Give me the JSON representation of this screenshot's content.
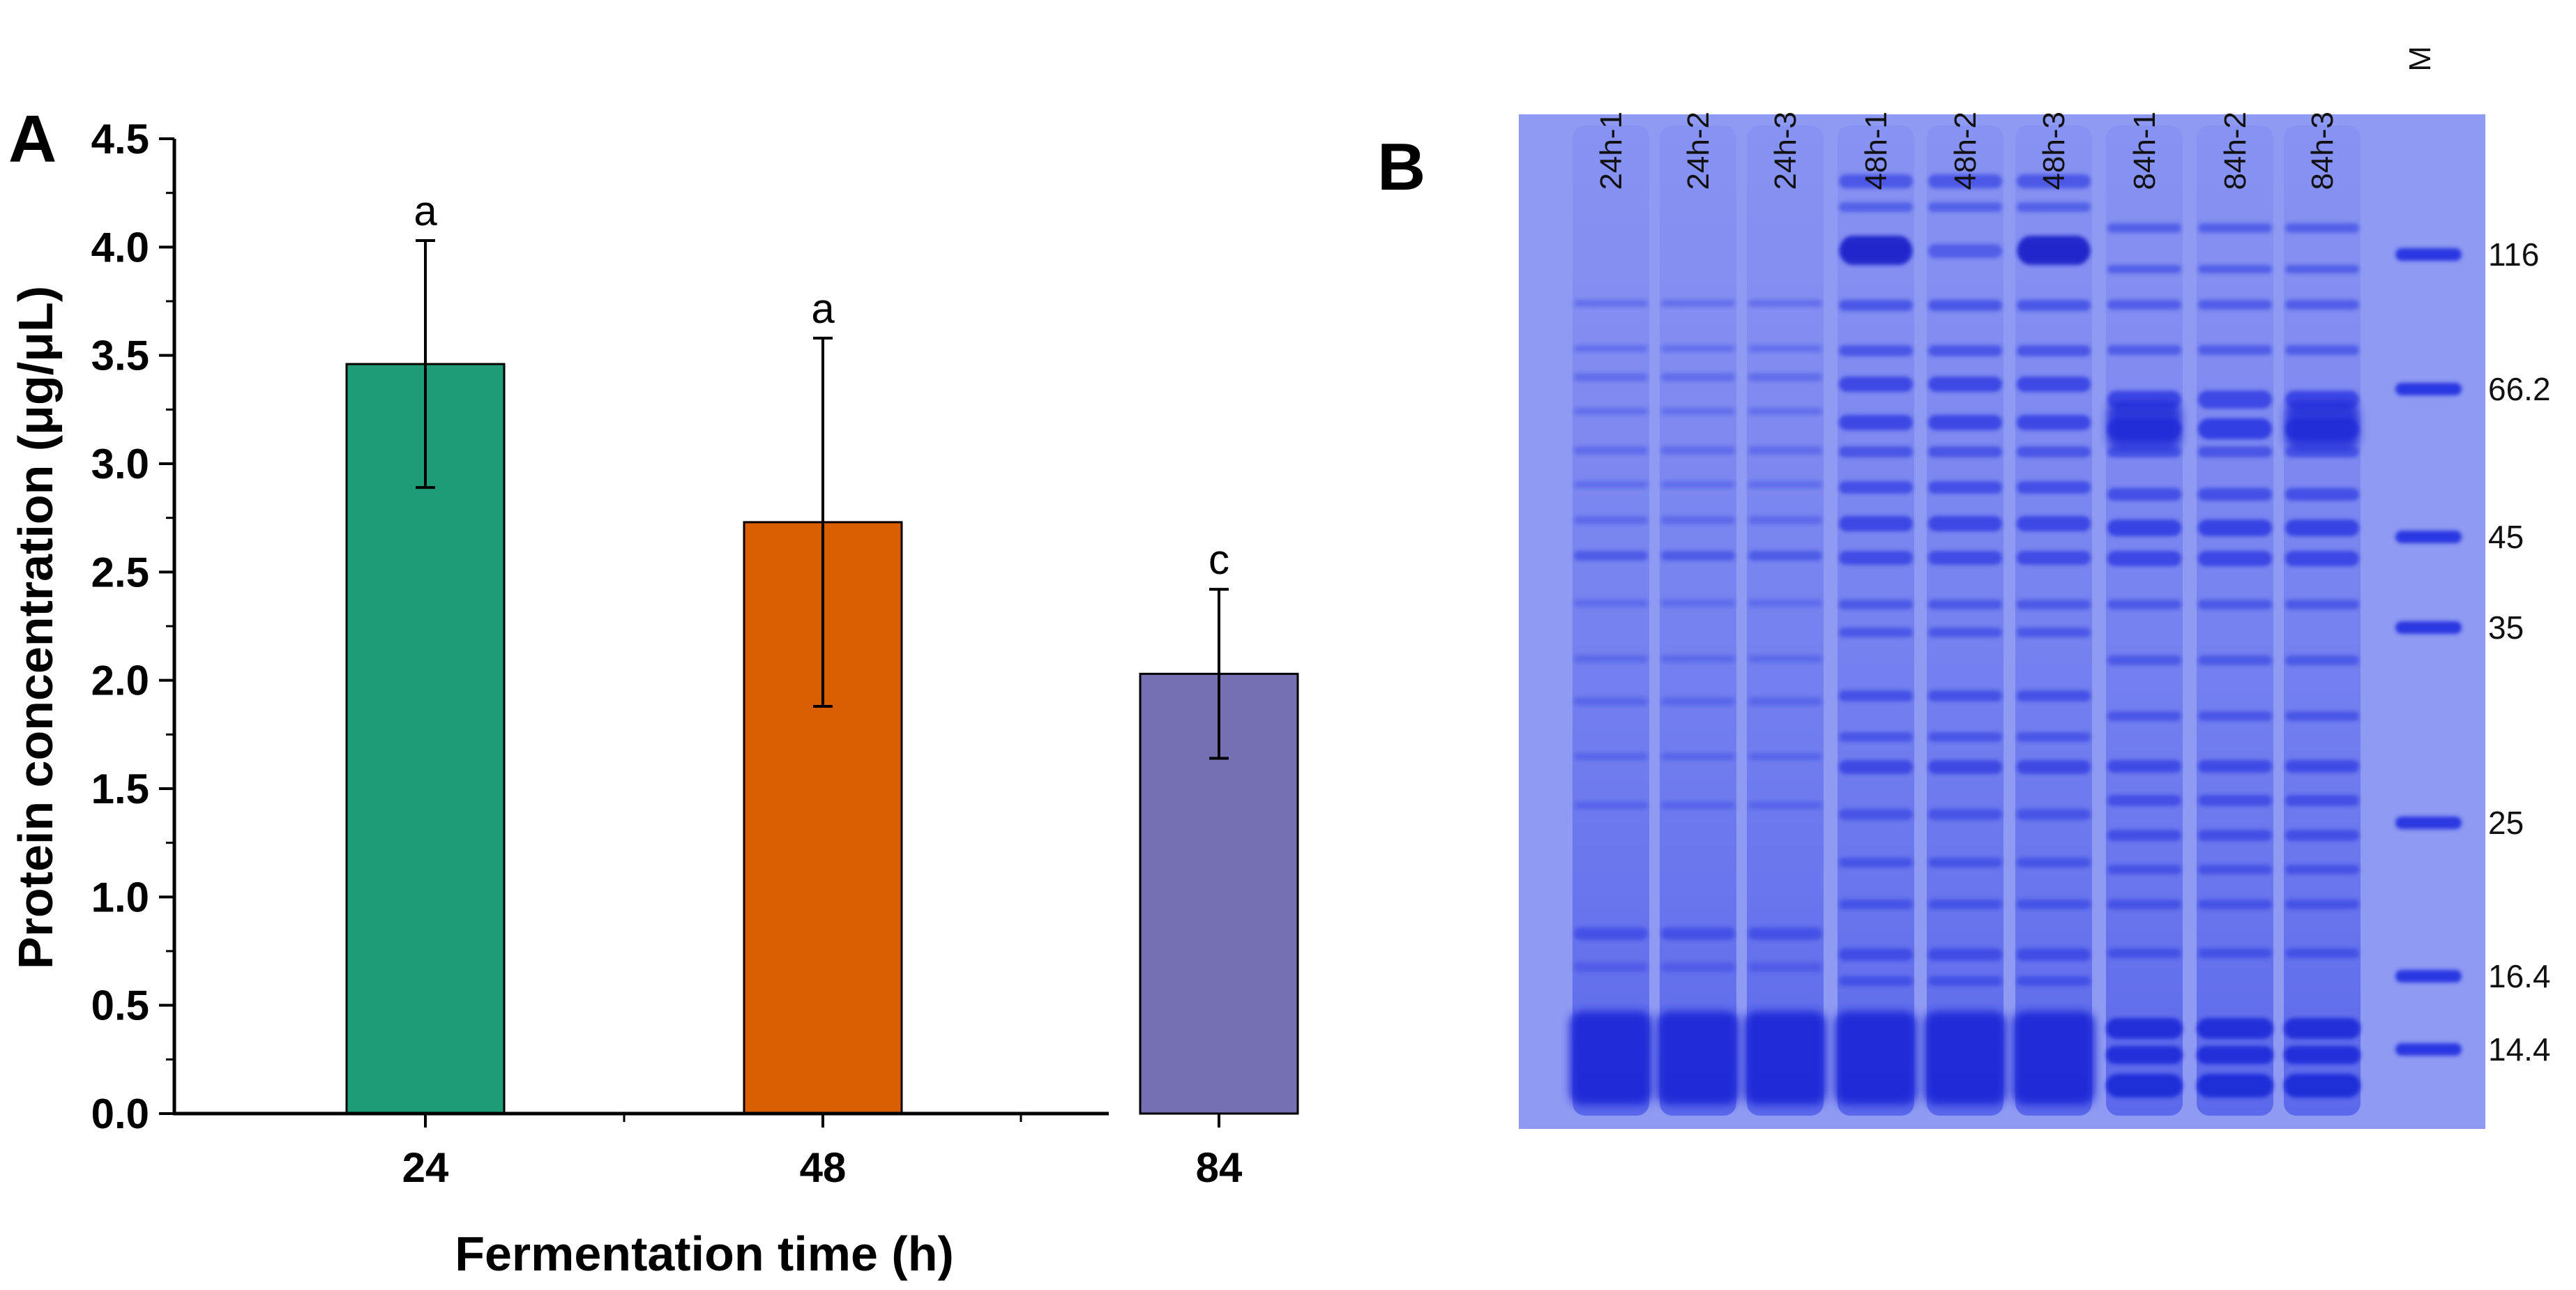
{
  "colors": {
    "bar_24": "#1e9c78",
    "bar_48": "#d95f02",
    "bar_84": "#7570b3",
    "gel_bg": "#8f9af2",
    "band": "#2633e0"
  },
  "chart_data": {
    "type": "bar",
    "panel_label": "A",
    "categories": [
      "24",
      "48",
      "84"
    ],
    "values": [
      3.46,
      2.73,
      2.03
    ],
    "errors": [
      0.57,
      0.85,
      0.39
    ],
    "significance": [
      "a",
      "a",
      "c"
    ],
    "ylim": [
      0,
      4.5
    ],
    "yticks": [
      "0.0",
      "0.5",
      "1.0",
      "1.5",
      "2.0",
      "2.5",
      "3.0",
      "3.5",
      "4.0",
      "4.5"
    ],
    "xlabel": "Fermentation time (h)",
    "ylabel": "Protein concentration (μg/μL)",
    "title": ""
  },
  "gel": {
    "panel_label": "B",
    "lanes": [
      "24h-1",
      "24h-2",
      "24h-3",
      "48h-1",
      "48h-2",
      "48h-3",
      "84h-1",
      "84h-2",
      "84h-3",
      "M"
    ],
    "markers": [
      "116",
      "66.2",
      "45",
      "35",
      "25",
      "16.4",
      "14.4"
    ]
  }
}
